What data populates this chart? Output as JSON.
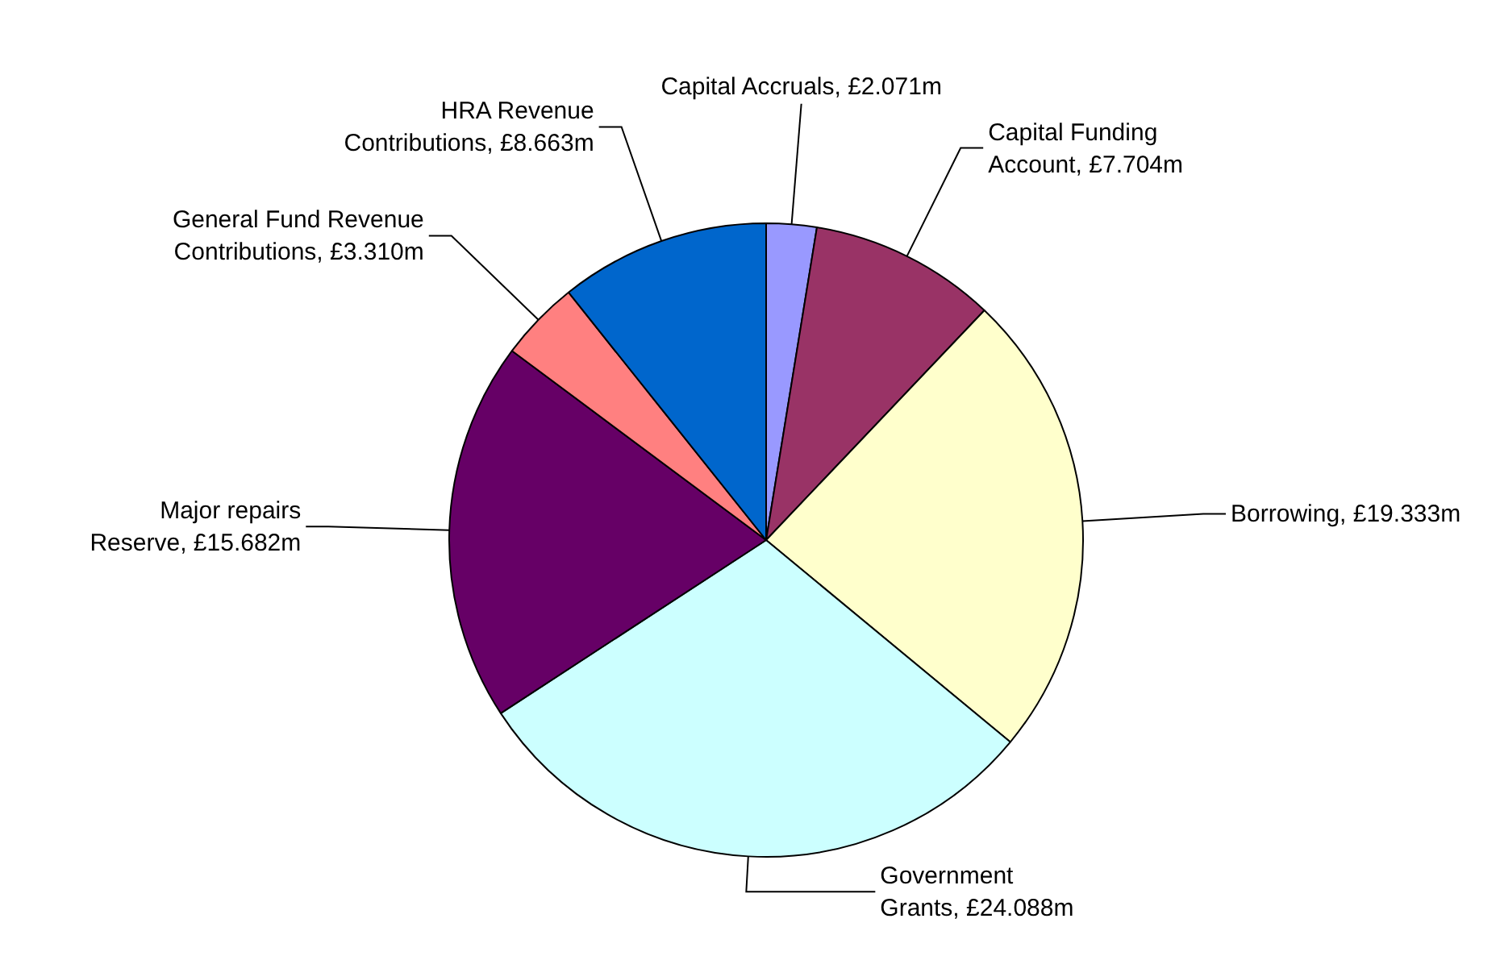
{
  "chart_data": {
    "type": "pie",
    "categories": [
      "Capital Accruals",
      "Capital Funding Account",
      "Borrowing",
      "Government Grants",
      "Major repairs Reserve",
      "General Fund Revenue Contributions",
      "HRA Revenue Contributions"
    ],
    "values": [
      2.071,
      7.704,
      19.333,
      24.088,
      15.682,
      3.31,
      8.663
    ],
    "value_labels": [
      "£2.071m",
      "£7.704m",
      "£19.333m",
      "£24.088m",
      "£15.682m",
      "£3.310m",
      "£8.663m"
    ],
    "colors": [
      "#9999ff",
      "#993366",
      "#ffffcc",
      "#ccffff",
      "#660066",
      "#ff8080",
      "#0066cc"
    ],
    "legend": false
  }
}
